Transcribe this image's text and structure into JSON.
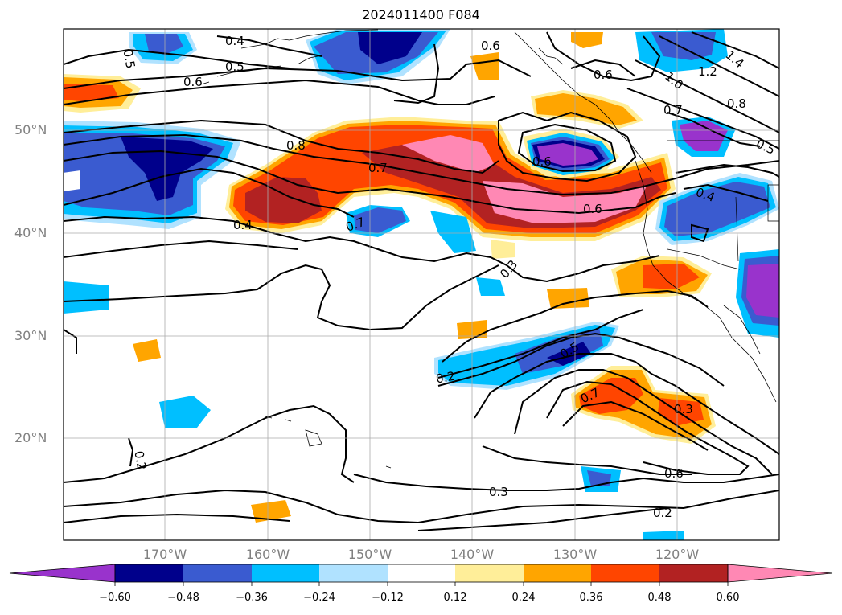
{
  "title": "2024011400 F084",
  "map": {
    "lat_labels": [
      "50°N",
      "40°N",
      "30°N",
      "20°N"
    ],
    "lon_labels": [
      "170°W",
      "160°W",
      "150°W",
      "140°W",
      "130°W",
      "120°W"
    ],
    "contour_labels": [
      "0.4",
      "0.5",
      "0.5",
      "0.6",
      "0.6",
      "0.6",
      "1.2",
      "1.4",
      "1.0",
      "0.7",
      "0.8",
      "0.5",
      "0.8",
      "0.7",
      "0.6",
      "0.6",
      "0.4",
      "0.4",
      "0.7",
      "0.3",
      "0.5",
      "0.2",
      "0.7",
      "0.3",
      "0.2",
      "0.6",
      "0.3",
      "0.2"
    ]
  },
  "colorbar": {
    "ticks": [
      "−0.60",
      "−0.48",
      "−0.36",
      "−0.24",
      "−0.12",
      "0.12",
      "0.24",
      "0.36",
      "0.48",
      "0.60"
    ],
    "colors": [
      "#9933cc",
      "#00008b",
      "#3a5bd0",
      "#00bfff",
      "#b0e2ff",
      "#ffffff",
      "#ffee99",
      "#ffa500",
      "#ff4500",
      "#b22222",
      "#ff88b4"
    ]
  }
}
